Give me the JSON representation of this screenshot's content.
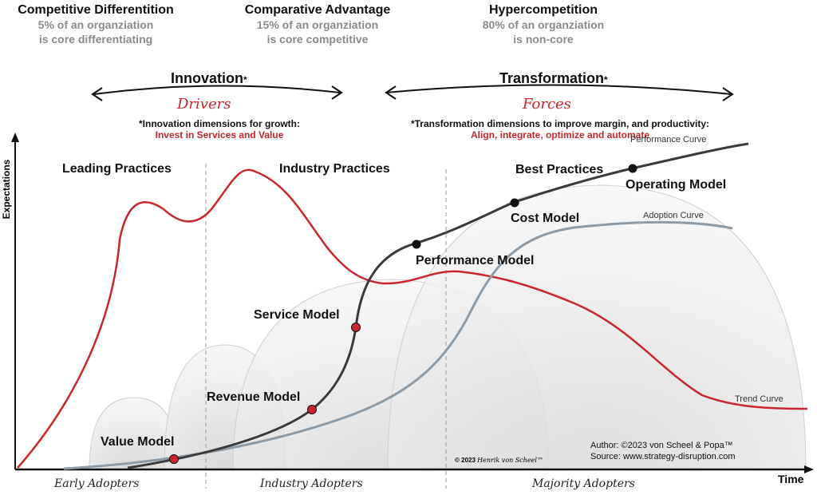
{
  "headers": [
    {
      "title": "Competitive Differentition",
      "line1": "5% of an organziation",
      "line2": "is core differentiating"
    },
    {
      "title": "Comparative Advantage",
      "line1": "15% of an organziation",
      "line2": "is core competitive"
    },
    {
      "title": "Hypercompetition",
      "line1": "80% of an organziation",
      "line2": "is non-core"
    }
  ],
  "innovation": {
    "title": "Innovation",
    "star": "*",
    "script": "Drivers",
    "note": "*Innovation dimensions for growth:",
    "note_red": "Invest in Services and Value"
  },
  "transformation": {
    "title": "Transformation",
    "star": "*",
    "script": "Forces",
    "note": "*Transformation dimensions to improve margin, and productivity:",
    "note_red": "Align, integrate, optimize and automate"
  },
  "axes": {
    "y": "Expectations",
    "x": "Time"
  },
  "practices": {
    "leading": "Leading Practices",
    "industry": "Industry Practices",
    "best": "Best Practices"
  },
  "models": {
    "value": "Value Model",
    "revenue": "Revenue Model",
    "service": "Service Model",
    "performance": "Performance Model",
    "cost": "Cost Model",
    "operating": "Operating Model"
  },
  "curves": {
    "performance": "Performance Curve",
    "adoption": "Adoption Curve",
    "trend": "Trend Curve"
  },
  "zones": {
    "early": "Early Adopters",
    "industry": "Industry Adopters",
    "majority": "Majority Adopters"
  },
  "credits": {
    "copyright": "© 2023",
    "signature": "Henrik von Scheel™",
    "author": "Author: ©2023 von Scheel & Popa™",
    "source": "Source: www.strategy-disruption.com"
  },
  "colors": {
    "red": "#c8262c",
    "dark": "#3a3a3a",
    "blue_grey": "#8d9ba6",
    "dome": "#e9e9e9"
  }
}
